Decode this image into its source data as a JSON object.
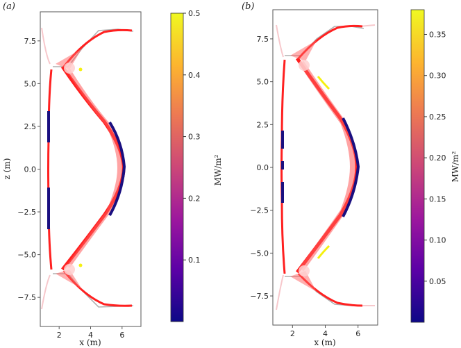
{
  "chart_data": [
    {
      "type": "heatmap",
      "panel_label": "(a)",
      "xlabel": "x (m)",
      "ylabel": "z (m)",
      "xticks": [
        "2",
        "4",
        "6"
      ],
      "yticks": [
        "7.5",
        "5.0",
        "2.5",
        "0.0",
        "−2.5",
        "−5.0",
        "−7.5"
      ],
      "xlim": [
        0.8,
        7.2
      ],
      "ylim": [
        -9.2,
        9.2
      ],
      "colorbar": {
        "label": "MW/m²",
        "range": [
          0.0,
          0.5
        ],
        "ticks": [
          "0.1",
          "0.2",
          "0.3",
          "0.4",
          "0.5"
        ],
        "tick_values": [
          0.1,
          0.2,
          0.3,
          0.4,
          0.5
        ]
      }
    },
    {
      "type": "heatmap",
      "panel_label": "(b)",
      "xlabel": "x (m)",
      "ylabel": "",
      "xticks": [
        "2",
        "4",
        "6"
      ],
      "yticks": [
        "7.5",
        "5.0",
        "2.5",
        "0.0",
        "−2.5",
        "−5.0",
        "−7.5"
      ],
      "xlim": [
        0.8,
        7.2
      ],
      "ylim": [
        -9.2,
        9.2
      ],
      "colorbar": {
        "label": "MW/m²",
        "range": [
          0.0,
          0.38
        ],
        "ticks": [
          "0.05",
          "0.10",
          "0.15",
          "0.20",
          "0.25",
          "0.30",
          "0.35"
        ],
        "tick_values": [
          0.05,
          0.1,
          0.15,
          0.2,
          0.25,
          0.3,
          0.35
        ]
      }
    }
  ],
  "colors": {
    "core": "#ff1a1a",
    "high": "#f5f010",
    "low": "#1a0f80",
    "wall": "#a8a8a8",
    "colormap": [
      "#0d0887",
      "#5c01a6",
      "#9c179e",
      "#cc4778",
      "#ed7953",
      "#fdb42f",
      "#f0f921"
    ]
  }
}
